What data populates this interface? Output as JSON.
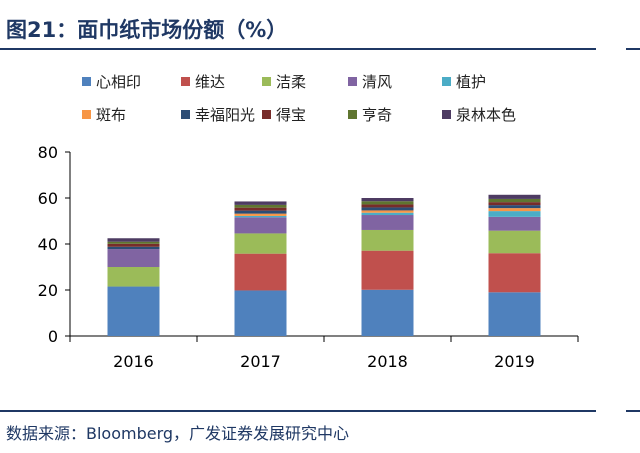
{
  "header": {
    "title": "图21：面巾纸市场份额（%）"
  },
  "footer": {
    "source": "数据来源：Bloomberg，广发证券发展研究中心"
  },
  "chart_data": {
    "type": "bar",
    "stacked": true,
    "categories": [
      "2016",
      "2017",
      "2018",
      "2019"
    ],
    "ylim": [
      0,
      80
    ],
    "yticks": [
      0,
      20,
      40,
      60,
      80
    ],
    "legend_position": "top",
    "series": [
      {
        "name": "心相印",
        "color": "#4f81bd",
        "values": [
          21.5,
          19.8,
          20.1,
          19.0
        ]
      },
      {
        "name": "维达",
        "color": "#c0504d",
        "values": [
          0,
          16.0,
          17.0,
          17.0
        ]
      },
      {
        "name": "洁柔",
        "color": "#9bbb59",
        "values": [
          8.5,
          8.8,
          9.0,
          9.8
        ]
      },
      {
        "name": "清风",
        "color": "#8064a2",
        "values": [
          7.8,
          7.0,
          6.5,
          6.0
        ]
      },
      {
        "name": "植护",
        "color": "#4bacc6",
        "values": [
          0,
          0.6,
          1.0,
          2.5
        ]
      },
      {
        "name": "斑布",
        "color": "#f79646",
        "values": [
          0,
          1.0,
          1.0,
          1.3
        ]
      },
      {
        "name": "幸福阳光",
        "color": "#2c4d75",
        "values": [
          1.0,
          1.3,
          1.3,
          1.3
        ]
      },
      {
        "name": "得宝",
        "color": "#772c2a",
        "values": [
          1.3,
          1.3,
          1.3,
          1.3
        ]
      },
      {
        "name": "亨奇",
        "color": "#5f7530",
        "values": [
          0.9,
          1.2,
          1.4,
          1.4
        ]
      },
      {
        "name": "泉林本色",
        "color": "#4d3b62",
        "values": [
          1.5,
          1.5,
          1.4,
          1.8
        ]
      }
    ]
  }
}
